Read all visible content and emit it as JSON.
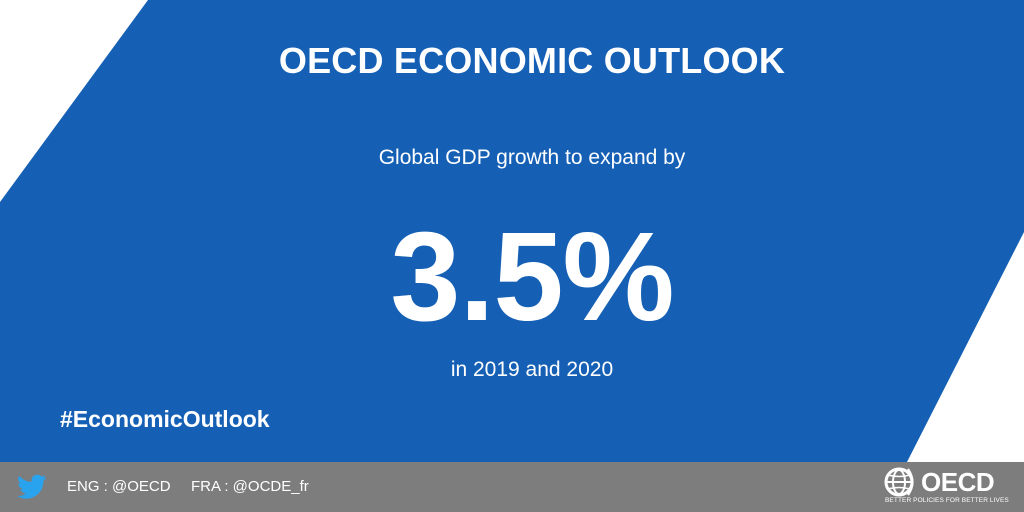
{
  "colors": {
    "background": "#ffffff",
    "banner_blue": "#1560b5",
    "footer_gray": "#7d7d7d",
    "text": "#ffffff"
  },
  "banner": {
    "title": "OECD ECONOMIC OUTLOOK",
    "subtitle": "Global GDP growth to expand by",
    "big_number": "3.5%",
    "period": "in 2019 and 2020",
    "hashtag": "#EconomicOutlook"
  },
  "footer": {
    "twitter_icon": "twitter-bird-icon",
    "handle_eng": "ENG : @OECD",
    "handle_fra": "FRA : @OCDE_fr",
    "logo": {
      "icon": "oecd-globe-icon",
      "wordmark": "OECD",
      "tagline": "BETTER POLICIES FOR BETTER LIVES"
    }
  }
}
